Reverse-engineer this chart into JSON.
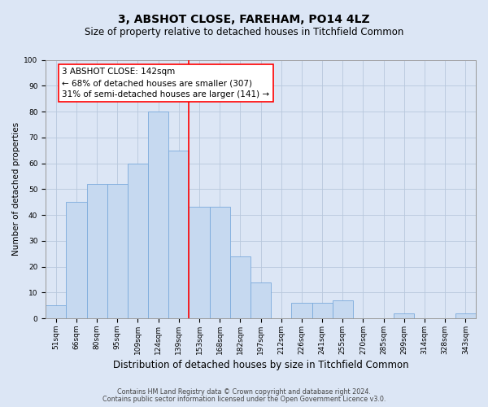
{
  "title": "3, ABSHOT CLOSE, FAREHAM, PO14 4LZ",
  "subtitle": "Size of property relative to detached houses in Titchfield Common",
  "xlabel": "Distribution of detached houses by size in Titchfield Common",
  "ylabel": "Number of detached properties",
  "footnote1": "Contains HM Land Registry data © Crown copyright and database right 2024.",
  "footnote2": "Contains public sector information licensed under the Open Government Licence v3.0.",
  "annotation_line1": "3 ABSHOT CLOSE: 142sqm",
  "annotation_line2": "← 68% of detached houses are smaller (307)",
  "annotation_line3": "31% of semi-detached houses are larger (141) →",
  "bar_labels": [
    "51sqm",
    "66sqm",
    "80sqm",
    "95sqm",
    "109sqm",
    "124sqm",
    "139sqm",
    "153sqm",
    "168sqm",
    "182sqm",
    "197sqm",
    "212sqm",
    "226sqm",
    "241sqm",
    "255sqm",
    "270sqm",
    "285sqm",
    "299sqm",
    "314sqm",
    "328sqm",
    "343sqm"
  ],
  "bar_values": [
    5,
    45,
    52,
    52,
    60,
    80,
    65,
    43,
    43,
    24,
    14,
    0,
    6,
    6,
    7,
    0,
    0,
    2,
    0,
    0,
    2
  ],
  "bar_color": "#c6d9f0",
  "bar_edge_color": "#7aaadc",
  "vline_x": 6.5,
  "vline_color": "red",
  "ylim": [
    0,
    100
  ],
  "yticks": [
    0,
    10,
    20,
    30,
    40,
    50,
    60,
    70,
    80,
    90,
    100
  ],
  "background_color": "#dce6f5",
  "grid_color": "#b8c8dc",
  "title_fontsize": 10,
  "subtitle_fontsize": 8.5,
  "xlabel_fontsize": 8.5,
  "ylabel_fontsize": 7.5,
  "tick_fontsize": 6.5,
  "annotation_fontsize": 7.5,
  "footnote_fontsize": 5.8
}
